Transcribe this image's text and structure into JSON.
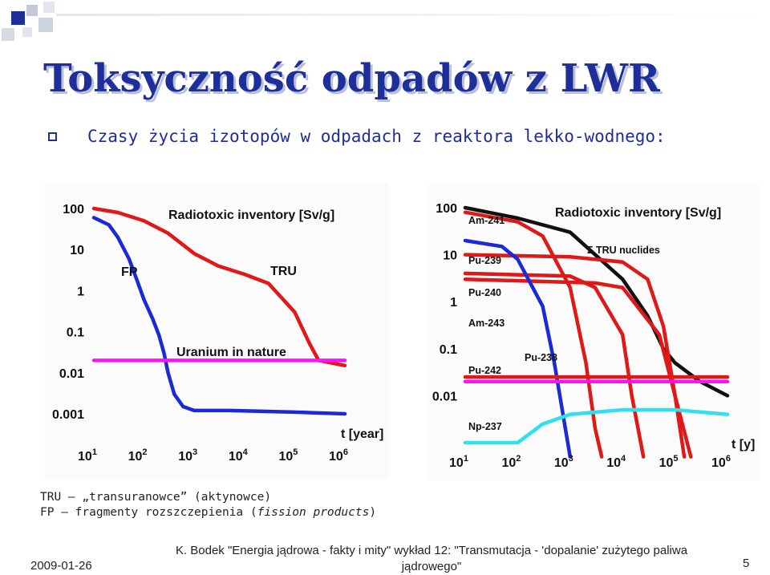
{
  "title": "Toksyczność odpadów z LWR",
  "bullet": "Czasy życia izotopów w odpadach z reaktora lekko-wodnego:",
  "legend": {
    "line1": "TRU – „transuranowce” (aktynowce)",
    "line2_prefix": "FP – fragmenty rozszczepienia (",
    "line2_italic": "fission products",
    "line2_suffix": ")"
  },
  "footer": {
    "date": "2009-01-26",
    "cite_line1": "K. Bodek \"Energia jądrowa - fakty i mity\" wykład 12: \"Transmutacja - 'dopalanie' zużytego paliwa",
    "cite_line2": "jądrowego\"",
    "page": "5"
  },
  "colors": {
    "title": "#1f2f9a",
    "red": "#e01818",
    "blue": "#1a2ad6",
    "magenta": "#ff10ff",
    "cyan": "#30e0f0",
    "black": "#111111"
  },
  "chart_data": [
    {
      "type": "line",
      "title": "Radiotoxic inventory [Sv/g]",
      "xlabel": "t [year]",
      "x_ticks": [
        "10^1",
        "10^2",
        "10^3",
        "10^4",
        "10^5",
        "10^6"
      ],
      "y_ticks": [
        "100",
        "10",
        "1",
        "0.1",
        "0.01",
        "0.001"
      ],
      "x_scale": "log",
      "y_scale": "log",
      "xlim": [
        10,
        1000000
      ],
      "ylim": [
        0.001,
        100
      ],
      "annotations": [
        "Uranium in nature"
      ],
      "series": [
        {
          "name": "FP",
          "color": "#1a2ad6",
          "x": [
            10,
            20,
            30,
            50,
            70,
            100,
            150,
            200,
            250,
            300,
            400,
            600,
            1000,
            5000,
            100000,
            1000000
          ],
          "y": [
            60,
            40,
            20,
            6,
            2,
            0.6,
            0.2,
            0.08,
            0.03,
            0.01,
            0.003,
            0.0015,
            0.0012,
            0.0012,
            0.0011,
            0.001
          ]
        },
        {
          "name": "TRU",
          "color": "#e01818",
          "x": [
            10,
            30,
            100,
            300,
            1000,
            3000,
            10000,
            30000,
            100000,
            200000,
            300000,
            1000000
          ],
          "y": [
            100,
            80,
            50,
            25,
            8,
            4,
            2.5,
            1.5,
            0.3,
            0.05,
            0.02,
            0.015
          ]
        },
        {
          "name": "Uranium in nature",
          "color": "#ff10ff",
          "x": [
            10,
            1000000
          ],
          "y": [
            0.02,
            0.02
          ]
        }
      ]
    },
    {
      "type": "line",
      "title": "Radiotoxic inventory [Sv/g]",
      "xlabel": "t [y]",
      "x_ticks": [
        "10^1",
        "10^2",
        "10^3",
        "10^4",
        "10^5",
        "10^6"
      ],
      "y_ticks": [
        "100",
        "10",
        "1",
        "0.1",
        "0.01"
      ],
      "x_scale": "log",
      "y_scale": "log",
      "xlim": [
        10,
        1000000
      ],
      "ylim": [
        0.001,
        100
      ],
      "series": [
        {
          "name": "Σ TRU nuclides",
          "color": "#111111",
          "x": [
            10,
            100,
            1000,
            3000,
            10000,
            30000,
            60000,
            100000,
            300000,
            1000000
          ],
          "y": [
            100,
            60,
            30,
            10,
            3,
            0.5,
            0.1,
            0.05,
            0.02,
            0.01
          ]
        },
        {
          "name": "Am-241",
          "color": "#e01818",
          "x": [
            10,
            100,
            300,
            1000,
            2000,
            3000,
            4000
          ],
          "y": [
            80,
            50,
            25,
            2,
            0.05,
            0.002,
            0.0005
          ]
        },
        {
          "name": "Pu-239",
          "color": "#e01818",
          "x": [
            10,
            1000,
            10000,
            30000,
            60000,
            100000,
            150000
          ],
          "y": [
            10,
            9,
            7,
            3,
            0.3,
            0.01,
            0.0005
          ]
        },
        {
          "name": "Pu-240",
          "color": "#e01818",
          "x": [
            10,
            1000,
            3000,
            10000,
            15000,
            25000
          ],
          "y": [
            4,
            3.5,
            2,
            0.2,
            0.01,
            0.0005
          ]
        },
        {
          "name": "Am-243",
          "color": "#e01818",
          "x": [
            10,
            3000,
            10000,
            50000,
            100000,
            200000
          ],
          "y": [
            3,
            2.5,
            2,
            0.2,
            0.01,
            0.0005
          ]
        },
        {
          "name": "Pu-238",
          "color": "#1a2ad6",
          "x": [
            10,
            50,
            100,
            300,
            500,
            1000
          ],
          "y": [
            20,
            15,
            8,
            0.8,
            0.05,
            0.0005
          ]
        },
        {
          "name": "Pu-242",
          "color": "#e01818",
          "x": [
            10,
            1000000
          ],
          "y": [
            0.025,
            0.025
          ]
        },
        {
          "name": "Np-237",
          "color": "#30e0f0",
          "x": [
            10,
            100,
            300,
            1000,
            10000,
            100000,
            1000000
          ],
          "y": [
            0.001,
            0.001,
            0.0025,
            0.004,
            0.005,
            0.005,
            0.004
          ]
        },
        {
          "name": "Uranium in nature",
          "color": "#ff10ff",
          "x": [
            10,
            1000000
          ],
          "y": [
            0.02,
            0.02
          ]
        }
      ]
    }
  ]
}
